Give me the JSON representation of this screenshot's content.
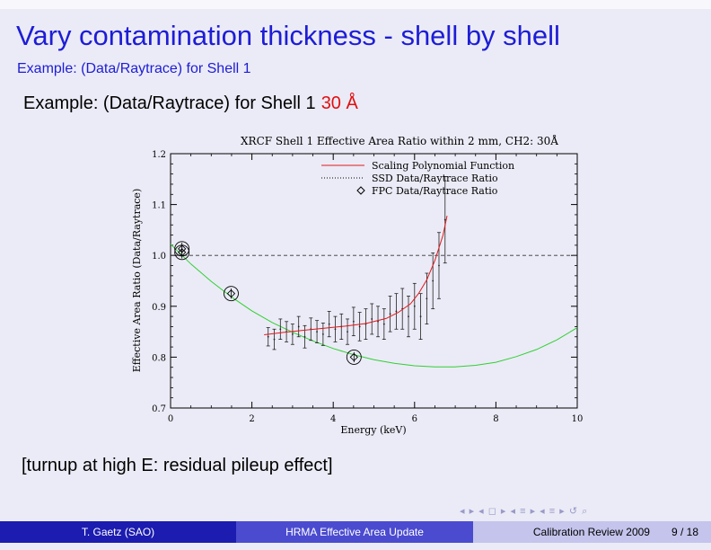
{
  "slide": {
    "title": "Vary contamination thickness - shell by shell",
    "subtitle": "Example: (Data/Raytrace) for Shell 1",
    "example_text": "Example: (Data/Raytrace) for Shell 1",
    "example_highlight": "30 Å",
    "note": "[turnup at high E: residual pileup effect]"
  },
  "footer": {
    "author": "T. Gaetz  (SAO)",
    "talk": "HRMA Effective Area Update",
    "event": "Calibration Review 2009",
    "page": "9 / 18"
  },
  "nav": {
    "icons": [
      "nav-first-icon",
      "nav-prev-icon",
      "nav-section-icon",
      "nav-next-icon",
      "nav-last-icon",
      "nav-search-icon"
    ]
  },
  "colors": {
    "title": "#1d1dd6",
    "highlight": "#e01010",
    "footer_dark": "#1c1cb0",
    "footer_mid": "#4b4bd0",
    "footer_light": "#c4c4ec",
    "poly": "#e21818",
    "green": "#30d030"
  },
  "chart_data": {
    "type": "scatter",
    "title": "XRCF Shell 1 Effective Area Ratio within 2 mm, CH2: 30Å",
    "xlabel": "Energy (keV)",
    "ylabel": "Effective Area Ratio (Data/Raytrace)",
    "xlim": [
      0,
      10
    ],
    "ylim": [
      0.7,
      1.2
    ],
    "x_ticks": [
      "0",
      "2",
      "4",
      "6",
      "8",
      "10"
    ],
    "y_ticks": [
      "0.7",
      "0.8",
      "0.9",
      "1.0",
      "1.1",
      "1.2"
    ],
    "reference_line": 1.0,
    "legend_position": "top-right",
    "legend": [
      "Scaling Polynomial Function",
      "SSD Data/Raytrace Ratio",
      "FPC Data/Raytrace Ratio"
    ],
    "series": [
      {
        "name": "Scaling Polynomial Function",
        "x": [
          2.3,
          2.8,
          3.3,
          3.8,
          4.3,
          4.8,
          5.3,
          5.6,
          5.9,
          6.1,
          6.3,
          6.5,
          6.7,
          6.8
        ],
        "y": [
          0.844,
          0.849,
          0.853,
          0.857,
          0.861,
          0.866,
          0.876,
          0.888,
          0.905,
          0.925,
          0.952,
          0.99,
          1.04,
          1.078
        ]
      },
      {
        "name": "SSD Data/Raytrace Ratio",
        "x": [
          2.4,
          2.55,
          2.7,
          2.85,
          3.0,
          3.15,
          3.3,
          3.45,
          3.6,
          3.75,
          3.9,
          4.05,
          4.2,
          4.35,
          4.5,
          4.65,
          4.8,
          4.95,
          5.1,
          5.25,
          5.4,
          5.55,
          5.7,
          5.85,
          6.0,
          6.15,
          6.3,
          6.45,
          6.6,
          6.75
        ],
        "y": [
          0.84,
          0.835,
          0.855,
          0.85,
          0.845,
          0.86,
          0.84,
          0.855,
          0.85,
          0.845,
          0.865,
          0.855,
          0.86,
          0.85,
          0.87,
          0.86,
          0.865,
          0.875,
          0.87,
          0.865,
          0.885,
          0.89,
          0.895,
          0.88,
          0.9,
          0.88,
          0.915,
          0.95,
          0.98,
          1.07
        ],
        "err": [
          0.018,
          0.02,
          0.02,
          0.02,
          0.02,
          0.02,
          0.022,
          0.022,
          0.022,
          0.022,
          0.025,
          0.025,
          0.025,
          0.025,
          0.028,
          0.028,
          0.03,
          0.03,
          0.03,
          0.03,
          0.035,
          0.035,
          0.04,
          0.04,
          0.045,
          0.045,
          0.05,
          0.055,
          0.065,
          0.085
        ]
      },
      {
        "name": "FPC Data/Raytrace Ratio",
        "x": [
          0.28,
          0.28,
          1.49,
          4.51
        ],
        "y": [
          1.013,
          1.006,
          0.925,
          0.8
        ],
        "err": [
          0.012,
          0.012,
          0.01,
          0.01
        ]
      },
      {
        "name": "",
        "x": [
          0,
          0.5,
          1,
          1.5,
          2,
          2.5,
          3,
          3.5,
          4,
          4.5,
          5,
          5.5,
          6,
          6.5,
          7,
          7.5,
          8,
          8.5,
          9,
          9.5,
          10
        ],
        "y": [
          1.022,
          0.983,
          0.949,
          0.918,
          0.891,
          0.868,
          0.849,
          0.832,
          0.817,
          0.805,
          0.795,
          0.788,
          0.783,
          0.781,
          0.781,
          0.784,
          0.79,
          0.801,
          0.815,
          0.834,
          0.858
        ]
      }
    ]
  }
}
